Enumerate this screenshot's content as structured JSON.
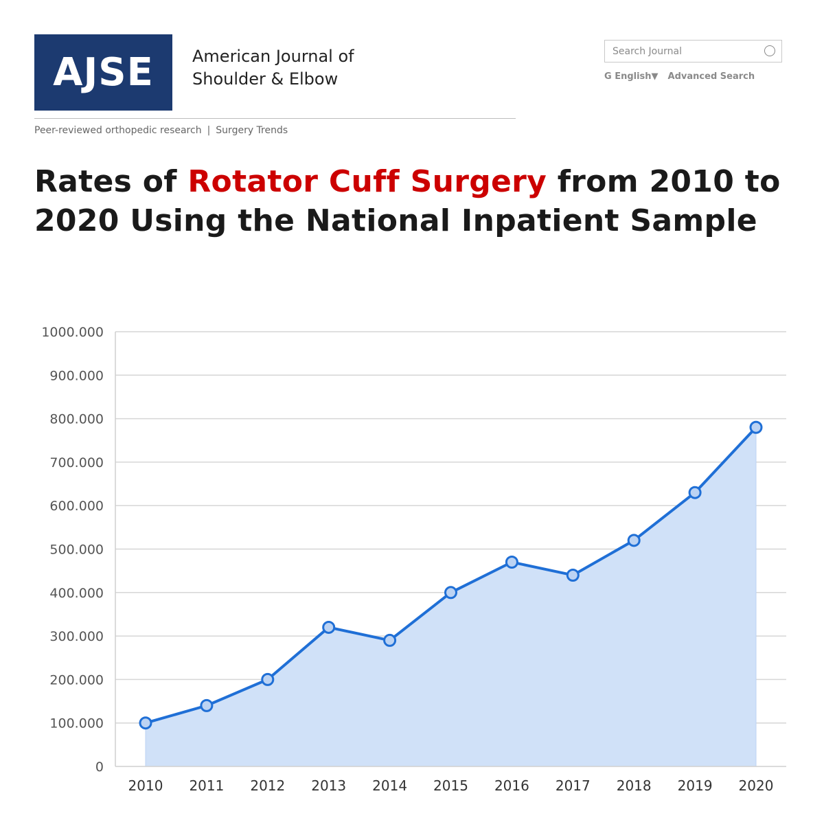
{
  "header": {
    "logo_text": "AJSE",
    "journal_name_line1": "American Journal of",
    "journal_name_line2": "Shoulder & Elbow",
    "tagline_part1": "Peer-reviewed orthopedic research",
    "tagline_separator": "|",
    "tagline_part2": "Surgery Trends",
    "search_placeholder": "Search Journal",
    "language_label": "G English▼",
    "advanced_search_label": "Advanced Search",
    "brand_color": "#1c3a70"
  },
  "article": {
    "title_part1": "Rates of ",
    "title_highlight": "Rotator Cuff Surgery",
    "title_part2": " from 2010 to 2020 Using the National Inpatient Sample",
    "highlight_color": "#cc0000"
  },
  "chart_data": {
    "type": "area",
    "title": "",
    "xlabel": "",
    "ylabel": "",
    "categories": [
      "2010",
      "2011",
      "2012",
      "2013",
      "2014",
      "2015",
      "2016",
      "2017",
      "2018",
      "2019",
      "2020"
    ],
    "series": [
      {
        "values": [
          100,
          140,
          200,
          320,
          290,
          400,
          470,
          440,
          520,
          630,
          780
        ],
        "line_color": "#1f6fd6",
        "fill_color": "#d0e1f8",
        "marker_fill": "#bcd3f3"
      }
    ],
    "ylim": [
      0,
      1000
    ],
    "yticks": [
      0,
      100,
      200,
      300,
      400,
      500,
      600,
      700,
      800,
      900,
      1000
    ],
    "ytick_labels": [
      "0",
      "100.000",
      "200.000",
      "300.000",
      "400.000",
      "500.000",
      "600.000",
      "700.000",
      "800.000",
      "900.000",
      "1000.000"
    ],
    "grid": true,
    "legend": "none"
  }
}
